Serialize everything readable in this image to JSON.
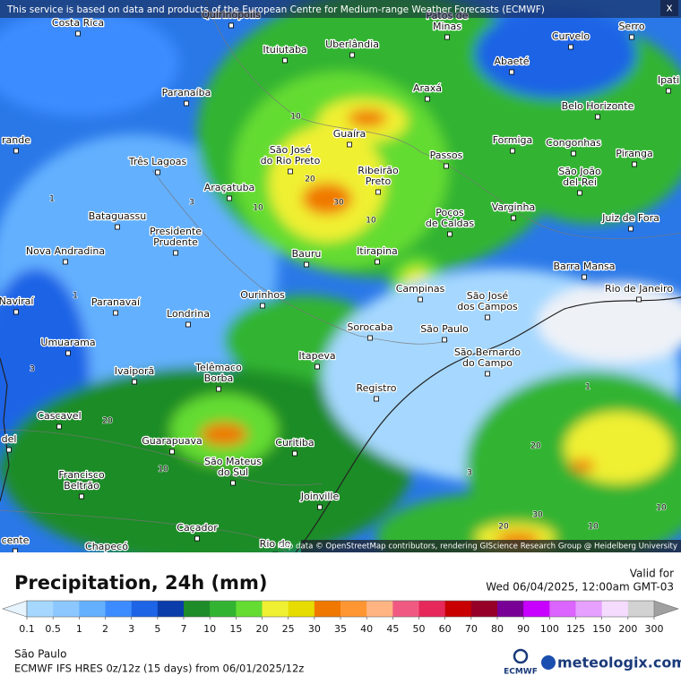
{
  "header": {
    "notice": "This service is based on data and products of the European Centre for Medium-range Weather Forecasts (ECMWF)",
    "close": "x"
  },
  "map": {
    "cities": [
      [
        "Costa Rica"
      ],
      [
        "Quirinópolis"
      ],
      [
        "Patos de",
        "Minas"
      ],
      [
        "Serro"
      ],
      [
        "Ituiutaba"
      ],
      [
        "Uberlândia"
      ],
      [
        "Abaeté"
      ],
      [
        "Curvelo"
      ],
      [
        "Paranaíba"
      ],
      [
        "Araxá"
      ],
      [
        "Ipati"
      ],
      [
        "Belo Horizonte"
      ],
      [
        "Guaíra"
      ],
      [
        "Formiga"
      ],
      [
        "Congonhas"
      ],
      [
        "rande"
      ],
      [
        "São José",
        "do Rio Preto"
      ],
      [
        "Ribeirão",
        "Preto"
      ],
      [
        "Passos"
      ],
      [
        "Piranga"
      ],
      [
        "Três Lagoas"
      ],
      [
        "São João",
        "del-Rei"
      ],
      [
        "Araçatuba"
      ],
      [
        "Varginha"
      ],
      [
        "Poços",
        "de Caldas"
      ],
      [
        "Juiz de Fora"
      ],
      [
        "Bataguassu"
      ],
      [
        "Presidente",
        "Prudente"
      ],
      [
        "Nova Andradina"
      ],
      [
        "Bauru"
      ],
      [
        "Itirapina"
      ],
      [
        "Barra Mansa"
      ],
      [
        "Campinas"
      ],
      [
        "Rio de Janeiro"
      ],
      [
        "São José",
        "dos Campos"
      ],
      [
        "Paranavaí"
      ],
      [
        "Naviraí"
      ],
      [
        "Ourinhos"
      ],
      [
        "Londrina"
      ],
      [
        "Sorocaba"
      ],
      [
        "São Paulo"
      ],
      [
        "Umuarama"
      ],
      [
        "São Bernardo",
        "do Campo"
      ],
      [
        "Itapeva"
      ],
      [
        "Ivaiporã"
      ],
      [
        "Telêmaco",
        "Borba"
      ],
      [
        "Registro"
      ],
      [
        "Cascavel"
      ],
      [
        "del"
      ],
      [
        "Guarapuava"
      ],
      [
        "Curitiba"
      ],
      [
        "São Mateus",
        "do Sul"
      ],
      [
        "Francisco",
        "Beltrão"
      ],
      [
        "Joinville"
      ],
      [
        "Caçador"
      ],
      [
        "cente"
      ],
      [
        "Chapecó"
      ],
      [
        "Rio do"
      ]
    ],
    "contour_labels": [
      10,
      20,
      30,
      10,
      10,
      3,
      1,
      1,
      3,
      10,
      20,
      30,
      20,
      10,
      1,
      3,
      10,
      20
    ],
    "attribution": "Map data © OpenStreetMap contributors, rendering GIScience Research Group @ Heidelberg University"
  },
  "legend": {
    "title": "Precipitation, 24h (mm)",
    "valid_label": "Valid for",
    "valid_time": "Wed 06/04/2025, 12:00am GMT-03",
    "levels": [
      0.1,
      0.5,
      1,
      2,
      3,
      5,
      7,
      10,
      15,
      20,
      25,
      30,
      35,
      40,
      45,
      50,
      60,
      70,
      80,
      90,
      100,
      125,
      150,
      200,
      300
    ],
    "colors": [
      "#a6d8ff",
      "#8cc8ff",
      "#64b0ff",
      "#3c8cff",
      "#1e64e6",
      "#0a3caa",
      "#1e8c28",
      "#32b432",
      "#64dc32",
      "#f0f032",
      "#e6dc00",
      "#f07800",
      "#ff9632",
      "#ffb482",
      "#f05a82",
      "#e6285a",
      "#c80000",
      "#960028",
      "#780096",
      "#c800ff",
      "#dc64ff",
      "#e6a0ff",
      "#f5dcff",
      "#d2d2d2"
    ],
    "under_color": "#e6f4ff",
    "over_color": "#a0a0a0"
  },
  "footer": {
    "region": "São Paulo",
    "model": "ECMWF IFS HRES 0z/12z (15 days) from 06/01/2025/12z",
    "ecmwf": "ECMWF",
    "brand": "meteologix.com"
  }
}
